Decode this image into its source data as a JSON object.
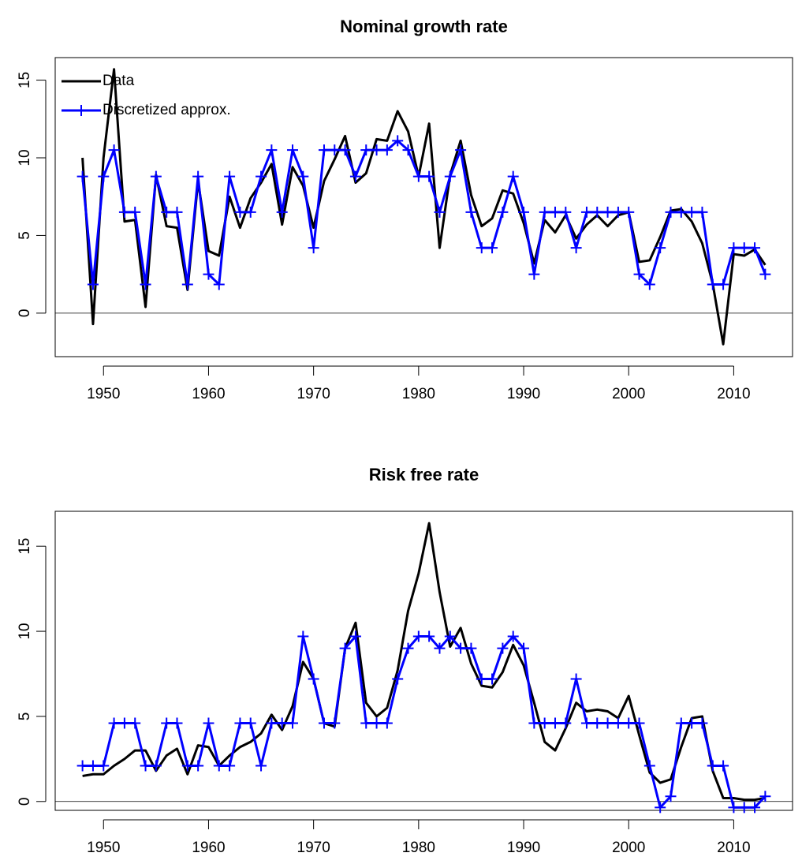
{
  "chart_data": [
    {
      "type": "line",
      "title": "Nominal growth rate",
      "x": [
        1948,
        1949,
        1950,
        1951,
        1952,
        1953,
        1954,
        1955,
        1956,
        1957,
        1958,
        1959,
        1960,
        1961,
        1962,
        1963,
        1964,
        1965,
        1966,
        1967,
        1968,
        1969,
        1970,
        1971,
        1972,
        1973,
        1974,
        1975,
        1976,
        1977,
        1978,
        1979,
        1980,
        1981,
        1982,
        1983,
        1984,
        1985,
        1986,
        1987,
        1988,
        1989,
        1990,
        1991,
        1992,
        1993,
        1994,
        1995,
        1996,
        1997,
        1998,
        1999,
        2000,
        2001,
        2002,
        2003,
        2004,
        2005,
        2006,
        2007,
        2008,
        2009,
        2010,
        2011,
        2012,
        2013
      ],
      "series": [
        {
          "name": "Data",
          "color": "#000000",
          "values": [
            10.0,
            -0.7,
            10.0,
            15.7,
            5.9,
            6.0,
            0.4,
            8.9,
            5.6,
            5.5,
            1.5,
            8.5,
            4.0,
            3.7,
            7.5,
            5.5,
            7.4,
            8.4,
            9.6,
            5.7,
            9.4,
            8.2,
            5.5,
            8.5,
            9.9,
            11.4,
            8.4,
            9.0,
            11.2,
            11.1,
            13.0,
            11.7,
            8.8,
            12.2,
            4.2,
            8.9,
            11.1,
            7.6,
            5.6,
            6.1,
            7.9,
            7.7,
            5.8,
            3.2,
            6.0,
            5.2,
            6.3,
            4.8,
            5.7,
            6.3,
            5.6,
            6.3,
            6.5,
            3.3,
            3.4,
            4.9,
            6.6,
            6.7,
            5.9,
            4.5,
            1.9,
            -2.0,
            3.8,
            3.7,
            4.1,
            3.1
          ]
        },
        {
          "name": "Discretized approx.",
          "color": "#0000ff",
          "marker": "+",
          "values": [
            8.8,
            1.85,
            8.8,
            10.5,
            6.5,
            6.5,
            1.85,
            8.8,
            6.5,
            6.5,
            1.85,
            8.8,
            2.5,
            1.85,
            8.8,
            6.5,
            6.5,
            8.8,
            10.5,
            6.5,
            10.5,
            8.8,
            4.2,
            10.5,
            10.5,
            10.5,
            8.8,
            10.5,
            10.5,
            10.5,
            11.1,
            10.5,
            8.8,
            8.8,
            6.5,
            8.8,
            10.5,
            6.5,
            4.2,
            4.2,
            6.5,
            8.8,
            6.5,
            2.5,
            6.5,
            6.5,
            6.5,
            4.2,
            6.5,
            6.5,
            6.5,
            6.5,
            6.5,
            2.5,
            1.85,
            4.2,
            6.5,
            6.5,
            6.5,
            6.5,
            1.85,
            1.85,
            4.2,
            4.2,
            4.2,
            2.5
          ]
        }
      ],
      "xlim": [
        1945.4,
        2015.6
      ],
      "ylim": [
        -2.8,
        16.45
      ],
      "xticks": [
        1950,
        1960,
        1970,
        1980,
        1990,
        2000,
        2010
      ],
      "yticks": [
        0,
        5,
        10,
        15
      ],
      "hline": 0,
      "legend": "topleft"
    },
    {
      "type": "line",
      "title": "Risk free rate",
      "x": [
        1948,
        1949,
        1950,
        1951,
        1952,
        1953,
        1954,
        1955,
        1956,
        1957,
        1958,
        1959,
        1960,
        1961,
        1962,
        1963,
        1964,
        1965,
        1966,
        1967,
        1968,
        1969,
        1970,
        1971,
        1972,
        1973,
        1974,
        1975,
        1976,
        1977,
        1978,
        1979,
        1980,
        1981,
        1982,
        1983,
        1984,
        1985,
        1986,
        1987,
        1988,
        1989,
        1990,
        1991,
        1992,
        1993,
        1994,
        1995,
        1996,
        1997,
        1998,
        1999,
        2000,
        2001,
        2002,
        2003,
        2004,
        2005,
        2006,
        2007,
        2008,
        2009,
        2010,
        2011,
        2012,
        2013
      ],
      "series": [
        {
          "color": "#000000",
          "values": [
            1.5,
            1.6,
            1.6,
            2.1,
            2.5,
            3.0,
            3.0,
            1.8,
            2.7,
            3.1,
            1.6,
            3.3,
            3.2,
            2.1,
            2.7,
            3.2,
            3.5,
            4.0,
            5.1,
            4.2,
            5.6,
            8.2,
            7.2,
            4.6,
            4.4,
            9.0,
            10.5,
            5.8,
            5.0,
            5.5,
            7.7,
            11.2,
            13.4,
            16.35,
            12.3,
            9.1,
            10.2,
            8.1,
            6.8,
            6.7,
            7.6,
            9.2,
            8.0,
            5.8,
            3.5,
            3.0,
            4.3,
            5.8,
            5.3,
            5.4,
            5.3,
            4.9,
            6.2,
            3.9,
            1.7,
            1.1,
            1.3,
            3.2,
            4.9,
            5.0,
            1.8,
            0.2,
            0.2,
            0.1,
            0.1,
            0.2
          ]
        },
        {
          "color": "#0000ff",
          "marker": "+",
          "values": [
            2.1,
            2.1,
            2.1,
            4.6,
            4.6,
            4.6,
            2.1,
            2.1,
            4.6,
            4.6,
            2.1,
            2.1,
            4.6,
            2.1,
            2.1,
            4.6,
            4.6,
            2.1,
            4.6,
            4.6,
            4.6,
            9.7,
            7.2,
            4.6,
            4.6,
            9.0,
            9.7,
            4.6,
            4.6,
            4.6,
            7.2,
            9.0,
            9.7,
            9.7,
            9.0,
            9.7,
            9.0,
            9.0,
            7.2,
            7.2,
            9.0,
            9.7,
            9.0,
            4.6,
            4.6,
            4.6,
            4.6,
            7.2,
            4.6,
            4.6,
            4.6,
            4.6,
            4.6,
            4.6,
            2.1,
            -0.35,
            0.3,
            4.6,
            4.6,
            4.6,
            2.1,
            2.1,
            -0.35,
            -0.35,
            -0.35,
            0.3
          ]
        }
      ],
      "xlim": [
        1945.4,
        2015.6
      ],
      "ylim": [
        -0.52,
        17.05
      ],
      "xticks": [
        1950,
        1960,
        1970,
        1980,
        1990,
        2000,
        2010
      ],
      "yticks": [
        0,
        5,
        10,
        15
      ],
      "hline": 0
    }
  ]
}
